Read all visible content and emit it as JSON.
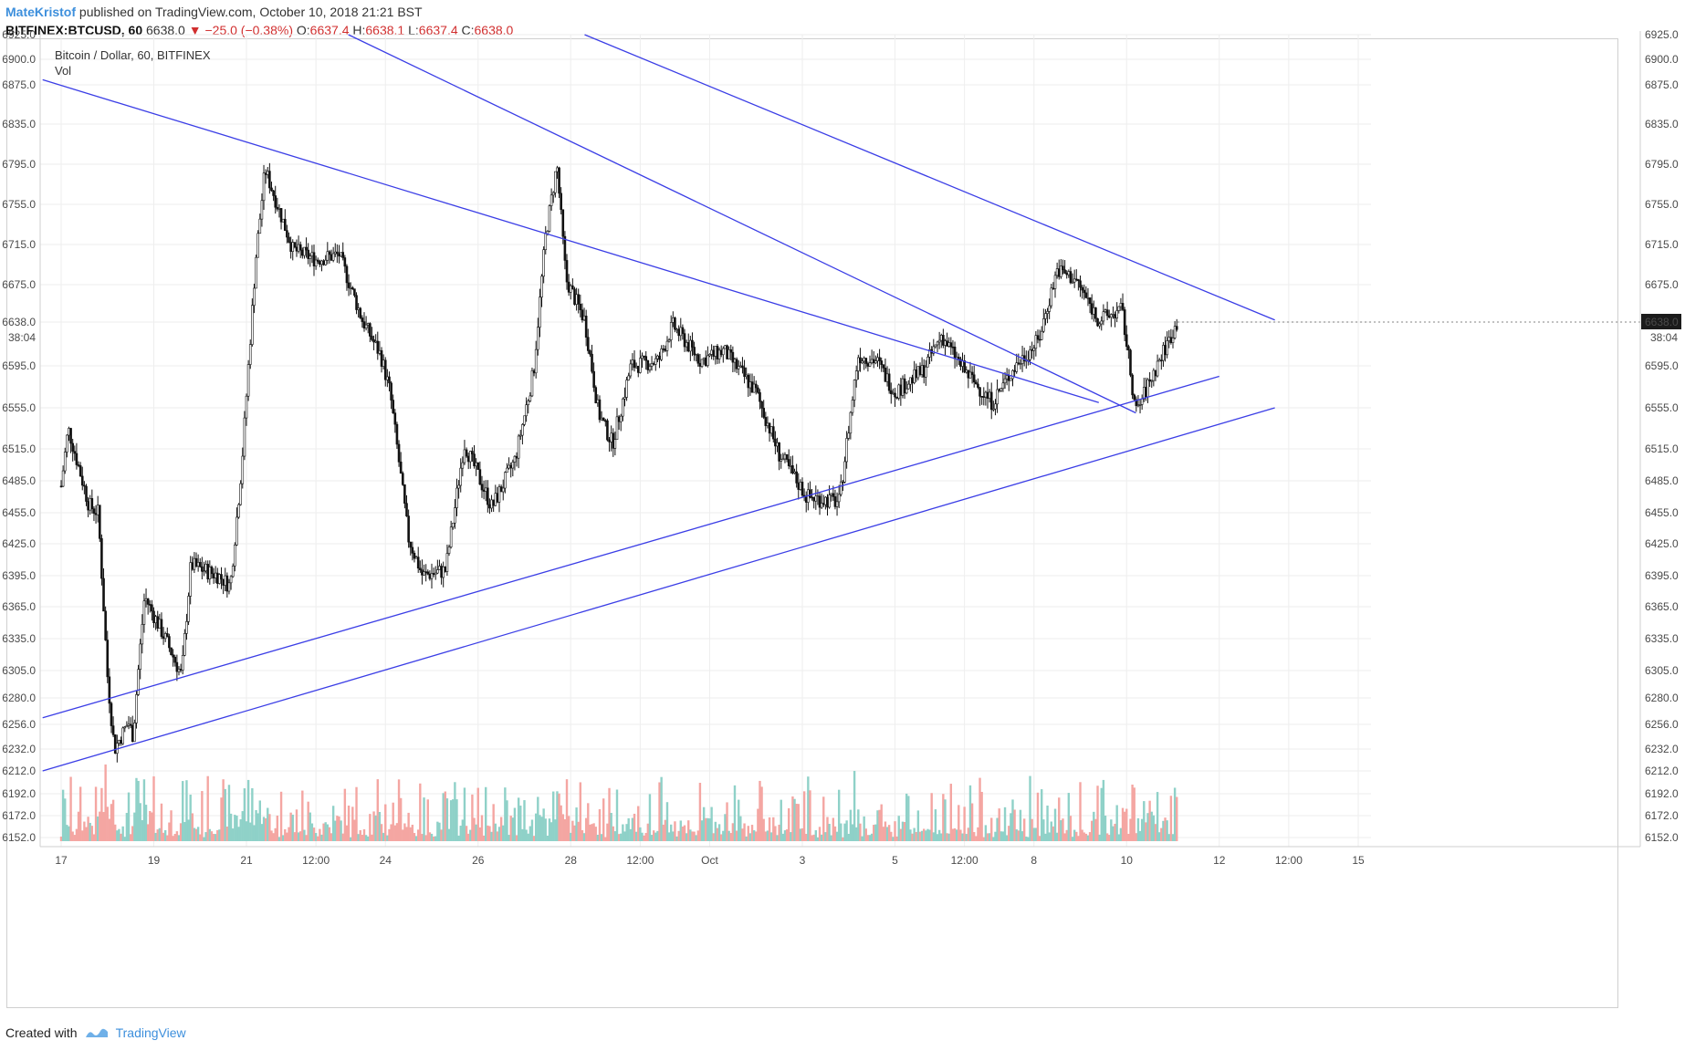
{
  "header": {
    "author": "MateKristof",
    "published": "published on TradingView.com, October 10, 2018 21:21 BST",
    "symbol": "BITFINEX:BTCUSD, 60",
    "last": "6638.0",
    "arrow": "▼",
    "change": "−25.0 (−0.38%)",
    "o_label": "O:",
    "o_value": "6637.4",
    "h_label": "H:",
    "h_value": "6638.1",
    "l_label": "L:",
    "l_value": "6637.4",
    "c_label": "C:",
    "c_value": "6638.0"
  },
  "legend": {
    "title": "Bitcoin / Dollar, 60, BITFINEX",
    "vol": "Vol"
  },
  "price_badge": {
    "value": "6638.0",
    "countdown": "38:04"
  },
  "footer": {
    "created": "Created with",
    "brand": "TradingView"
  },
  "colors": {
    "trendline": "#3b3ee6",
    "candle": "#111111",
    "volume_up": "#8fd1c8",
    "volume_down": "#f4a6a2",
    "grid": "#eeeeee",
    "badge_bg": "#1b1b1b"
  },
  "chart_data": {
    "type": "candlestick",
    "symbol": "BITFINEX:BTCUSD",
    "interval": "60",
    "y_ticks": [
      6925,
      6900,
      6875,
      6835,
      6795,
      6755,
      6715,
      6675,
      6638,
      6595,
      6555,
      6515,
      6485,
      6455,
      6425,
      6395,
      6365,
      6335,
      6305,
      6280,
      6256,
      6232,
      6212,
      6192,
      6172,
      6152
    ],
    "y_tick_labels": [
      "6925.0",
      "6900.0",
      "6875.0",
      "6835.0",
      "6795.0",
      "6755.0",
      "6715.0",
      "6675.0",
      "6638.0",
      "6595.0",
      "6555.0",
      "6515.0",
      "6485.0",
      "6455.0",
      "6425.0",
      "6395.0",
      "6365.0",
      "6335.0",
      "6305.0",
      "6280.0",
      "6256.0",
      "6232.0",
      "6212.0",
      "6192.0",
      "6172.0",
      "6152.0"
    ],
    "x_tick_labels": [
      "17",
      "19",
      "21",
      "12:00",
      "24",
      "26",
      "28",
      "12:00",
      "Oct",
      "3",
      "5",
      "12:00",
      "8",
      "10",
      "12",
      "12:00",
      "15"
    ],
    "x_tick_days": [
      0,
      2,
      4,
      5.5,
      7,
      9,
      11,
      12.5,
      14,
      16,
      18,
      19.5,
      21,
      23,
      25,
      26.5,
      28
    ],
    "key_points": [
      {
        "day": 0,
        "price": 6480
      },
      {
        "day": 0.15,
        "price": 6535
      },
      {
        "day": 0.6,
        "price": 6462
      },
      {
        "day": 0.8,
        "price": 6455
      },
      {
        "day": 1.0,
        "price": 6300
      },
      {
        "day": 1.15,
        "price": 6232
      },
      {
        "day": 1.45,
        "price": 6258
      },
      {
        "day": 1.55,
        "price": 6245
      },
      {
        "day": 1.8,
        "price": 6375
      },
      {
        "day": 2.3,
        "price": 6330
      },
      {
        "day": 2.6,
        "price": 6300
      },
      {
        "day": 2.8,
        "price": 6405
      },
      {
        "day": 3.4,
        "price": 6395
      },
      {
        "day": 3.65,
        "price": 6385
      },
      {
        "day": 3.9,
        "price": 6500
      },
      {
        "day": 4.2,
        "price": 6700
      },
      {
        "day": 4.4,
        "price": 6790
      },
      {
        "day": 5.0,
        "price": 6710
      },
      {
        "day": 5.5,
        "price": 6700
      },
      {
        "day": 6.0,
        "price": 6705
      },
      {
        "day": 6.5,
        "price": 6640
      },
      {
        "day": 6.9,
        "price": 6605
      },
      {
        "day": 7.1,
        "price": 6570
      },
      {
        "day": 7.5,
        "price": 6430
      },
      {
        "day": 7.8,
        "price": 6395
      },
      {
        "day": 8.3,
        "price": 6400
      },
      {
        "day": 8.7,
        "price": 6520
      },
      {
        "day": 9.3,
        "price": 6460
      },
      {
        "day": 9.8,
        "price": 6505
      },
      {
        "day": 10.2,
        "price": 6590
      },
      {
        "day": 10.45,
        "price": 6720
      },
      {
        "day": 10.7,
        "price": 6795
      },
      {
        "day": 10.9,
        "price": 6680
      },
      {
        "day": 11.3,
        "price": 6640
      },
      {
        "day": 11.6,
        "price": 6550
      },
      {
        "day": 11.9,
        "price": 6520
      },
      {
        "day": 12.3,
        "price": 6595
      },
      {
        "day": 12.9,
        "price": 6600
      },
      {
        "day": 13.2,
        "price": 6635
      },
      {
        "day": 13.8,
        "price": 6600
      },
      {
        "day": 14.3,
        "price": 6610
      },
      {
        "day": 15.0,
        "price": 6570
      },
      {
        "day": 15.5,
        "price": 6510
      },
      {
        "day": 16.1,
        "price": 6470
      },
      {
        "day": 16.8,
        "price": 6465
      },
      {
        "day": 17.2,
        "price": 6605
      },
      {
        "day": 17.6,
        "price": 6600
      },
      {
        "day": 18.0,
        "price": 6570
      },
      {
        "day": 18.6,
        "price": 6590
      },
      {
        "day": 19.0,
        "price": 6625
      },
      {
        "day": 19.5,
        "price": 6590
      },
      {
        "day": 20.1,
        "price": 6560
      },
      {
        "day": 20.6,
        "price": 6595
      },
      {
        "day": 21.1,
        "price": 6620
      },
      {
        "day": 21.5,
        "price": 6690
      },
      {
        "day": 21.9,
        "price": 6680
      },
      {
        "day": 22.4,
        "price": 6640
      },
      {
        "day": 22.9,
        "price": 6650
      },
      {
        "day": 23.2,
        "price": 6550
      },
      {
        "day": 23.7,
        "price": 6600
      },
      {
        "day": 24.1,
        "price": 6638
      }
    ],
    "trendlines": [
      {
        "from": {
          "day": -0.4,
          "price": 6880
        },
        "to": {
          "day": 22.4,
          "price": 6560
        }
      },
      {
        "from": {
          "day": 6.2,
          "price": 6925
        },
        "to": {
          "day": 23.2,
          "price": 6550
        }
      },
      {
        "from": {
          "day": 11.3,
          "price": 6925
        },
        "to": {
          "day": 26.2,
          "price": 6640
        }
      },
      {
        "from": {
          "day": -0.4,
          "price": 6262
        },
        "to": {
          "day": 25.0,
          "price": 6585
        }
      },
      {
        "from": {
          "day": -0.4,
          "price": 6212
        },
        "to": {
          "day": 26.2,
          "price": 6555
        }
      }
    ]
  }
}
